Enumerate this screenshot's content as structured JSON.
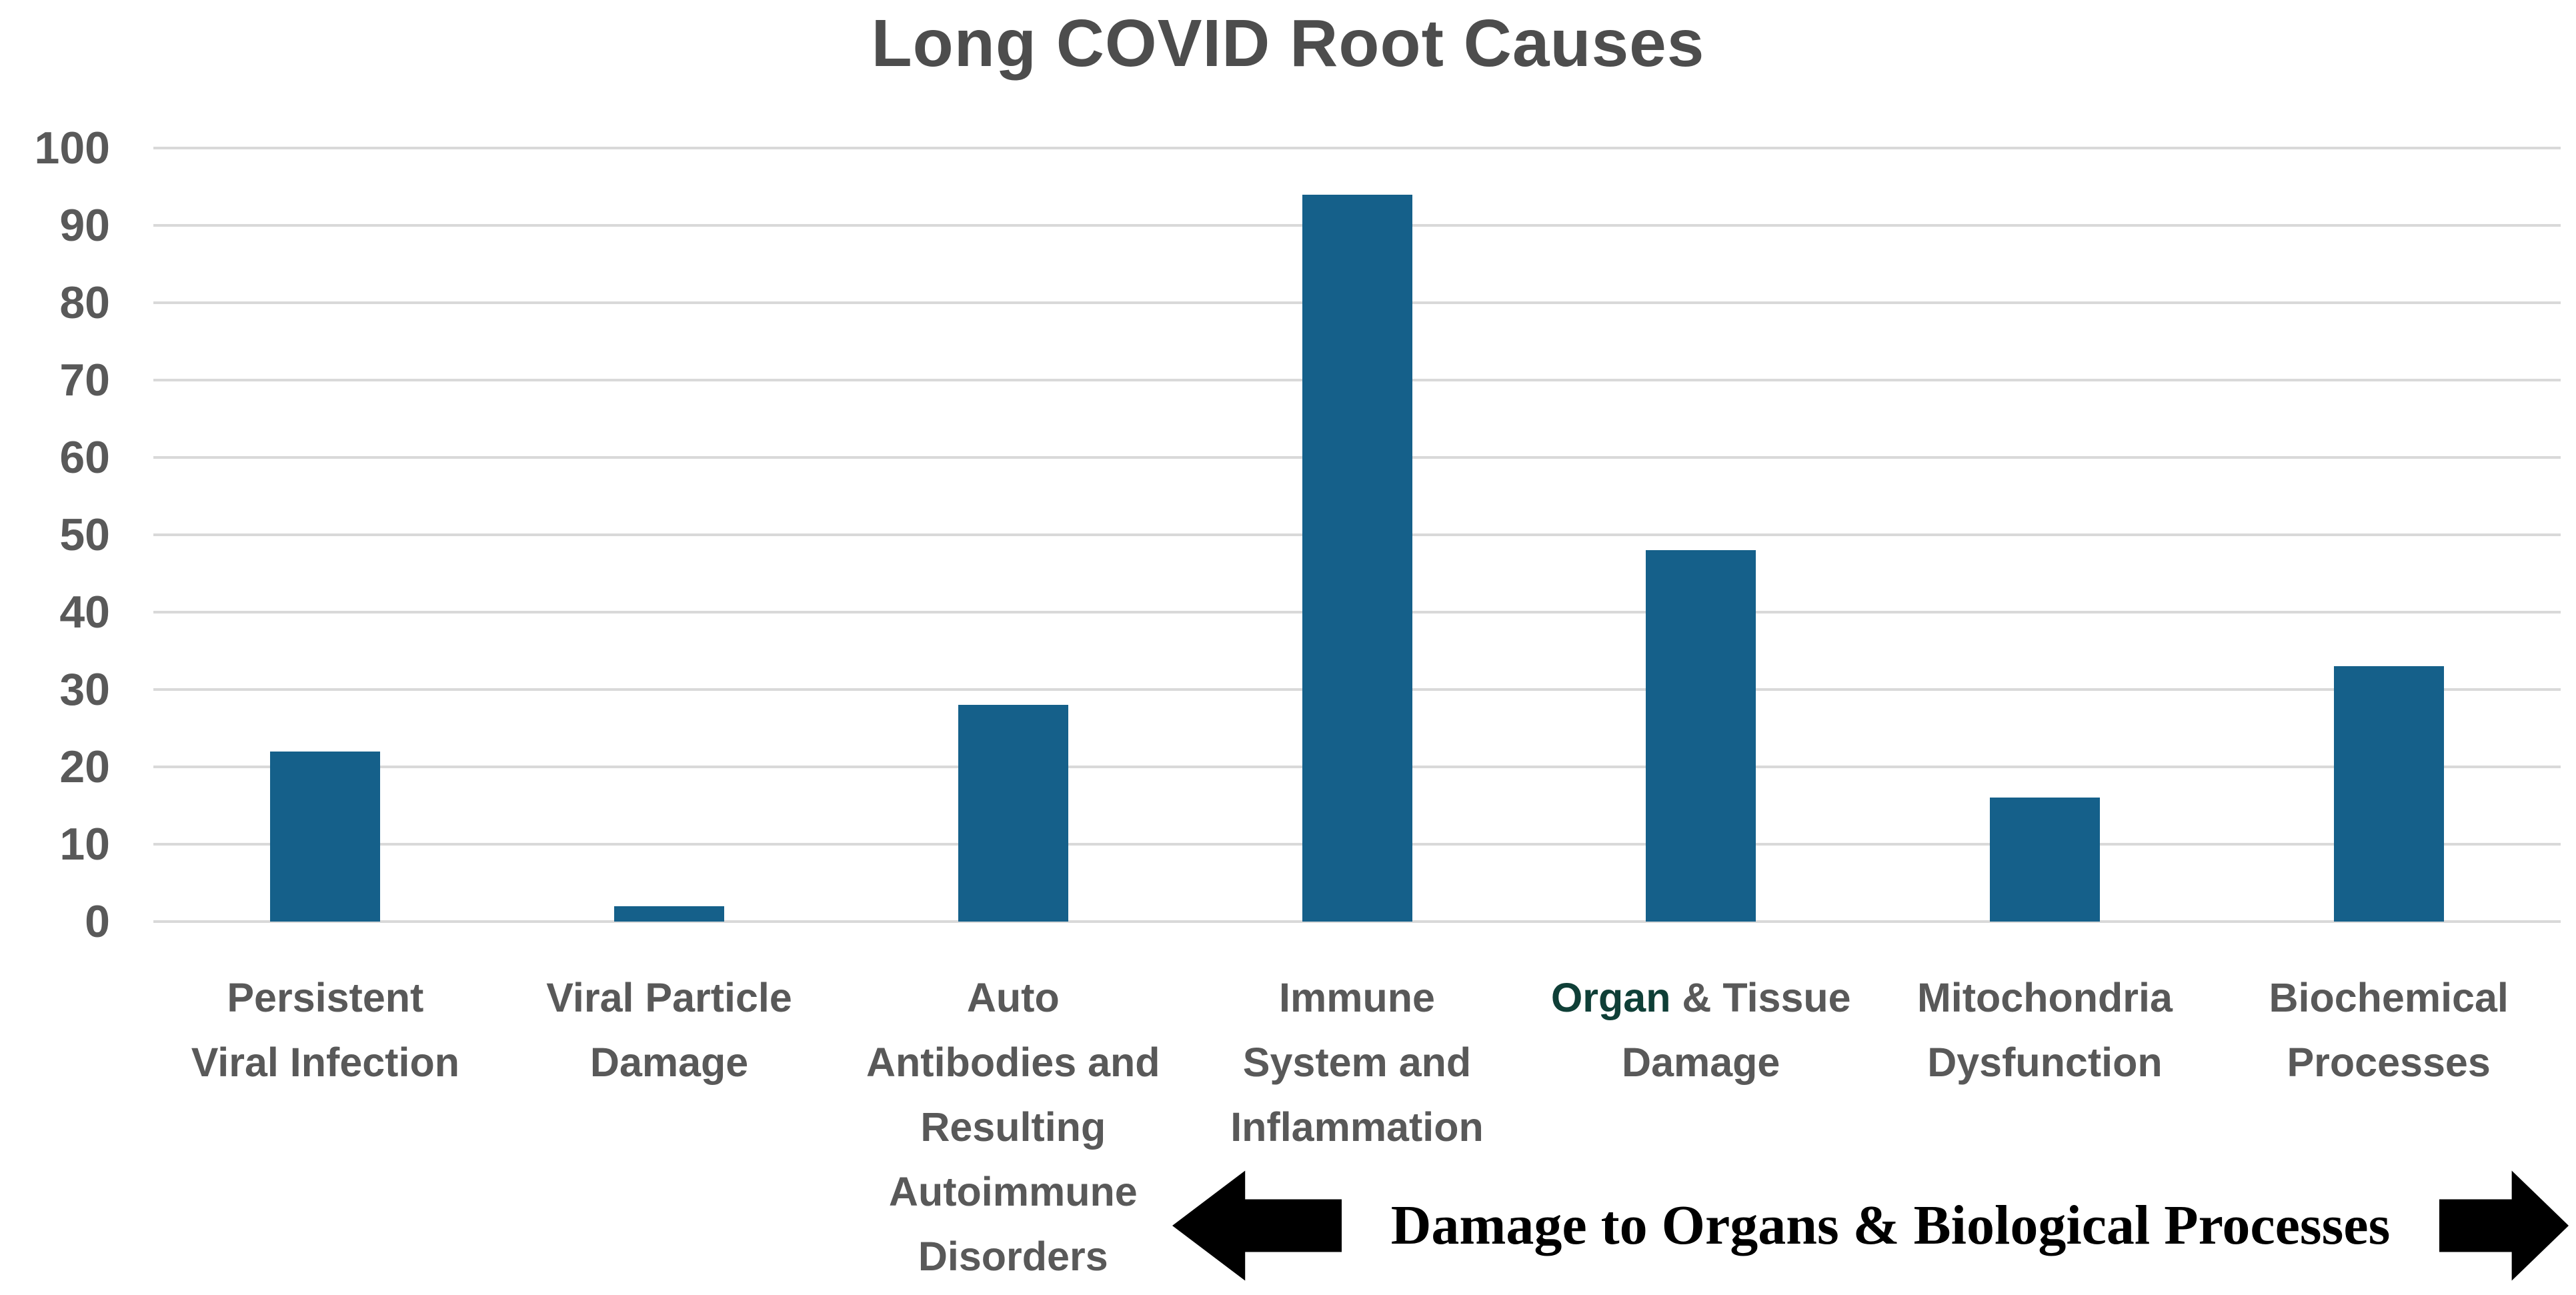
{
  "chart_data": {
    "type": "bar",
    "title": "Long COVID Root Causes",
    "categories": [
      "Persistent Viral Infection",
      "Viral Particle Damage",
      "Auto Antibodies and Resulting Autoimmune Disorders",
      "Immune System and Inflammation",
      "Organ & Tissue Damage",
      "Mitochondria Dysfunction",
      "Biochemical Processes"
    ],
    "categories_lines": [
      [
        "Persistent",
        "Viral Infection"
      ],
      [
        "Viral Particle",
        "Damage"
      ],
      [
        "Auto",
        "Antibodies and",
        "Resulting",
        "Autoimmune",
        "Disorders"
      ],
      [
        "Immune",
        "System and",
        "Inflammation"
      ],
      [
        "Organ & Tissue",
        "Damage"
      ],
      [
        "Mitochondria",
        "Dysfunction"
      ],
      [
        "Biochemical",
        "Processes"
      ]
    ],
    "values": [
      22,
      2,
      28,
      94,
      48,
      16,
      33
    ],
    "ylim": [
      0,
      100
    ],
    "yticks": [
      0,
      10,
      20,
      30,
      40,
      50,
      60,
      70,
      80,
      90,
      100
    ],
    "xlabel": "",
    "ylabel": "",
    "grid": true,
    "legend": false,
    "bar_color": "#15608a",
    "gridline_color": "#d9d9d9",
    "title_color": "#4d4d4d",
    "label_color": "#595959",
    "highlight": {
      "category_index": 4,
      "word": "Organ",
      "color": "#0f3f37"
    },
    "annotation": {
      "text": "Damage to Organs & Biological Processes",
      "arrows": [
        "left",
        "right"
      ],
      "color": "#000000"
    }
  }
}
